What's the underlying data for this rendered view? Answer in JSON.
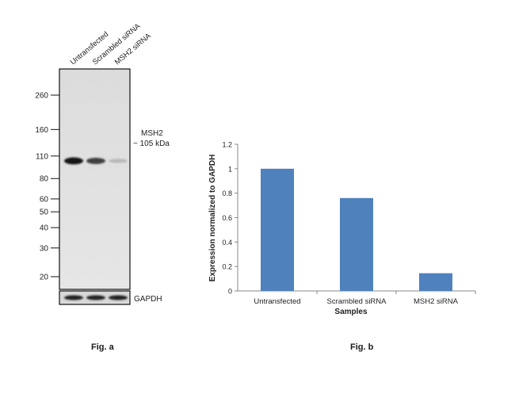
{
  "western_blot": {
    "lanes": [
      "Untransfected",
      "Scrambled siRNA",
      "MSH2 siRNA"
    ],
    "mw_markers": [
      "260",
      "160",
      "110",
      "80",
      "60",
      "50",
      "40",
      "30",
      "20"
    ],
    "mw_values": [
      260,
      160,
      110,
      80,
      60,
      50,
      40,
      30,
      20
    ],
    "band_label_line1": "MSH2",
    "band_label_line2": "~ 105 kDa",
    "loading_control": "GAPDH",
    "band_intensity": [
      1.0,
      0.78,
      0.18
    ],
    "fig_label": "Fig. a"
  },
  "chart_data": {
    "type": "bar",
    "categories": [
      "Untransfected",
      "Scrambled siRNA",
      "MSH2 siRNA"
    ],
    "values": [
      1.0,
      0.76,
      0.145
    ],
    "xlabel": "Samples",
    "ylabel": "Expression normalized to GAPDH",
    "ylim": [
      0,
      1.2
    ],
    "yticks": [
      "0",
      "0.2",
      "0.4",
      "0.6",
      "0.8",
      "1",
      "1.2"
    ],
    "ytick_values": [
      0,
      0.2,
      0.4,
      0.6,
      0.8,
      1.0,
      1.2
    ],
    "bar_color": "#4f81bd",
    "grid": false,
    "fig_label": "Fig. b"
  }
}
